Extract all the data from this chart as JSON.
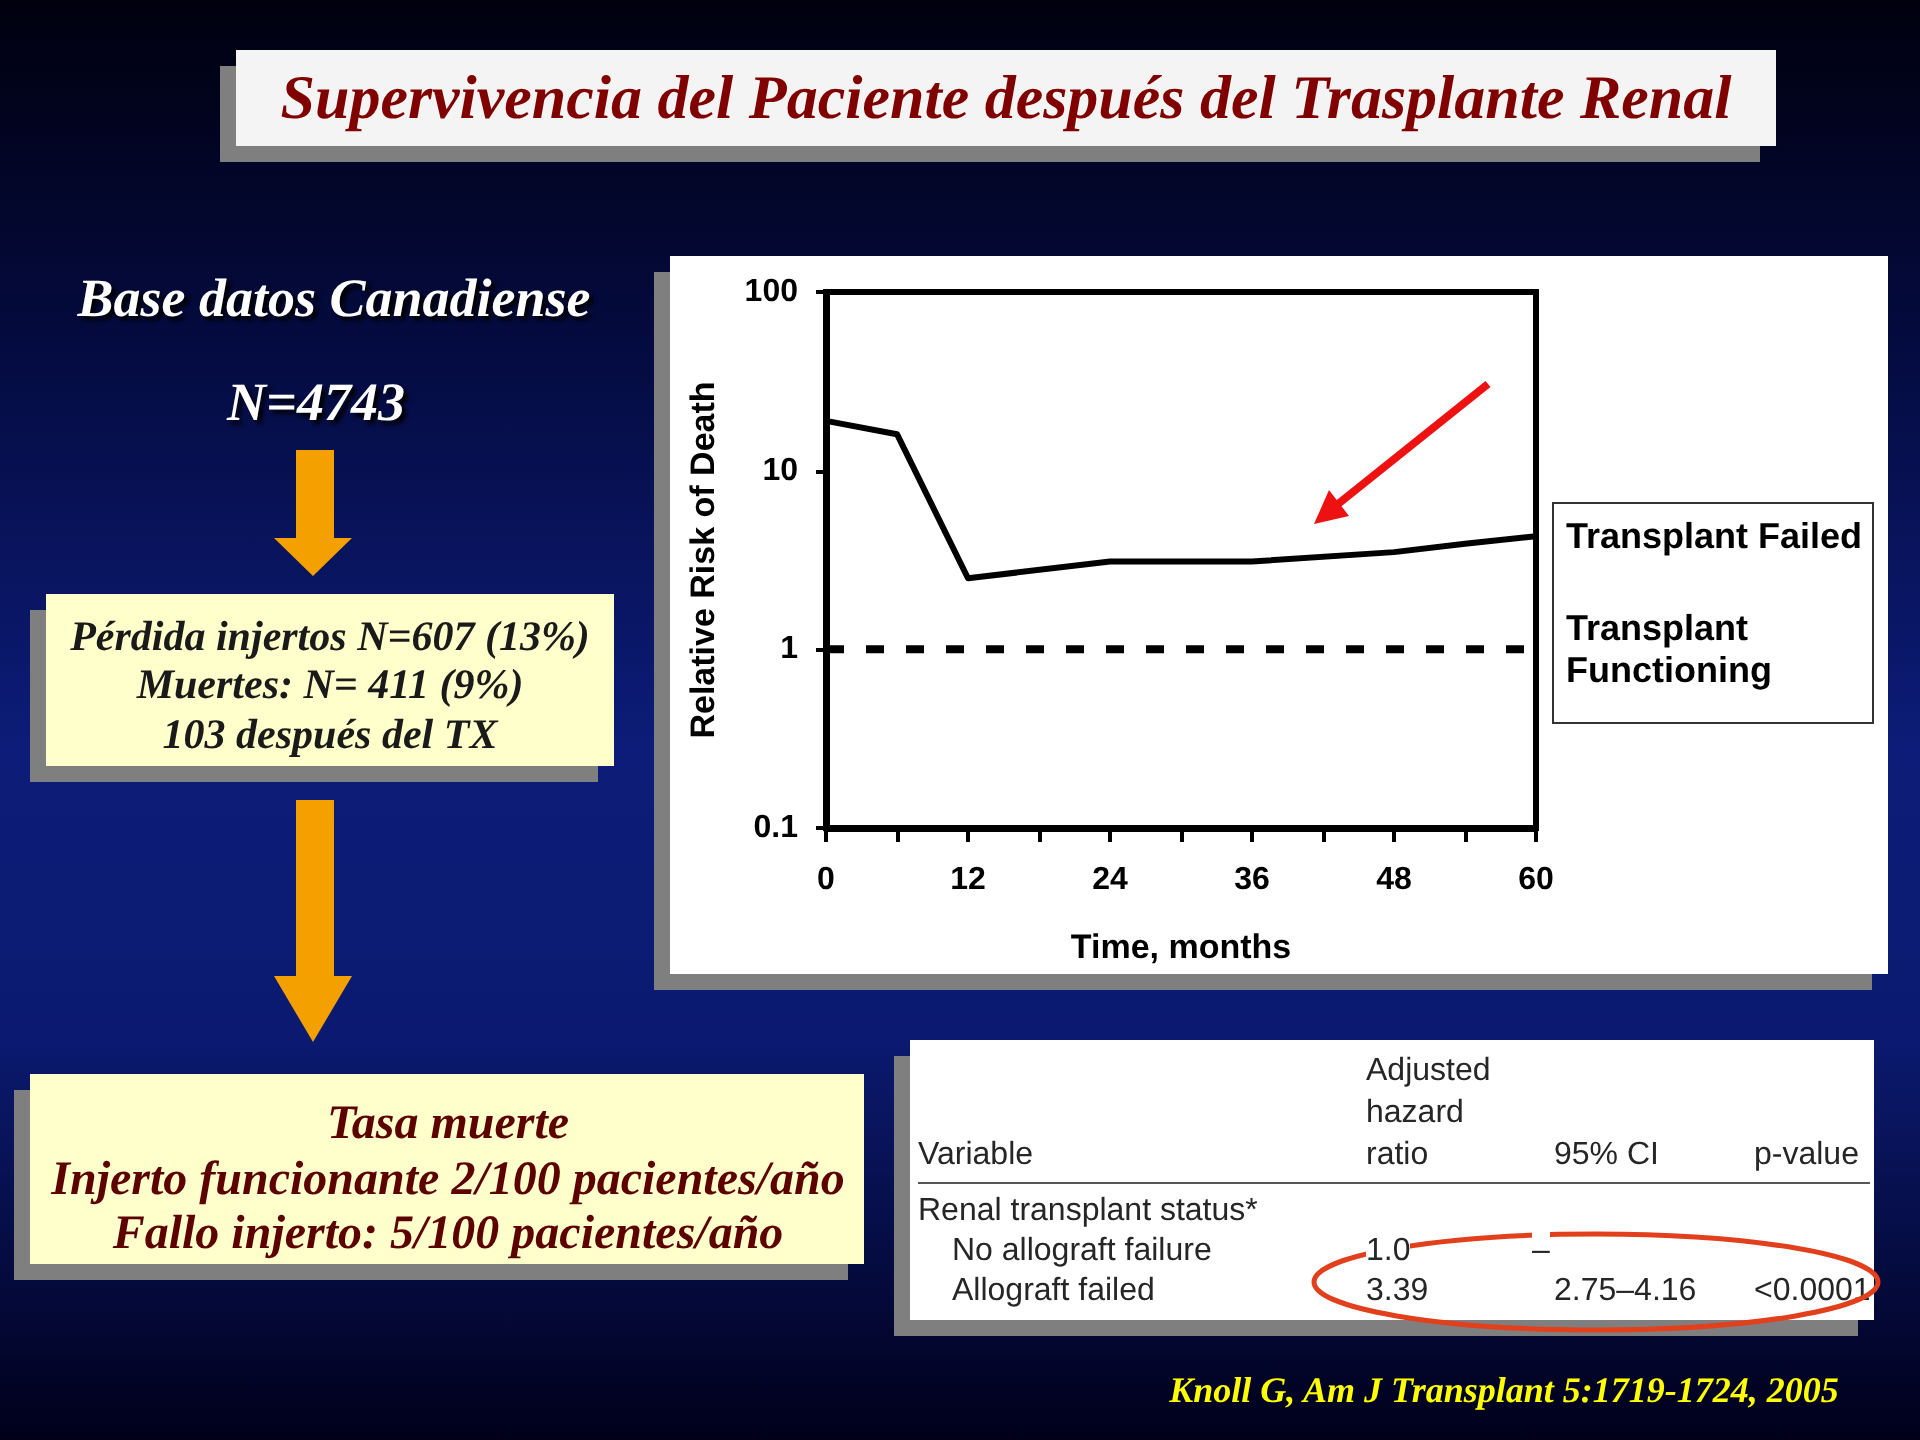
{
  "chart_data": {
    "type": "line",
    "title": "Supervivencia del Paciente después del Trasplante Renal",
    "xlabel": "Time, months",
    "ylabel": "Relative Risk of Death",
    "series": [
      {
        "name": "Transplant Failed",
        "color": "#000000",
        "x": [
          0,
          6,
          12,
          24,
          36,
          48,
          54,
          60
        ],
        "values": [
          19,
          16,
          2.5,
          3.1,
          3.1,
          3.5,
          3.9,
          4.3
        ]
      },
      {
        "name": "Transplant Functioning",
        "color": "#000000",
        "x": [
          0,
          60
        ],
        "values": [
          1,
          1
        ],
        "line_style": "dashed"
      }
    ],
    "xlim": [
      0,
      60
    ],
    "xticks": [
      0,
      {
        "value": 6,
        "label": null
      },
      12,
      {
        "value": 18,
        "label": null
      },
      24,
      {
        "value": 30,
        "label": null
      },
      36,
      {
        "value": 42,
        "label": null
      },
      48,
      {
        "value": 54,
        "label": null
      },
      60
    ],
    "ylim": [
      0.1,
      100
    ],
    "yticks": [
      0.1,
      1,
      10,
      100
    ],
    "log": "y",
    "marker": "none",
    "line_style": "solid",
    "annotations": [
      "Base datos Canadiense",
      "N=4743",
      "Pérdida injertos N=607 (13%)",
      "Muertes: N= 411 (9%)",
      "103 después del TX",
      "Tasa muerte",
      "Injerto funcionante 2/100 pacientes/año",
      "Fallo injerto: 5/100 pacientes/año",
      "Variable",
      "Adjusted hazard ratio",
      "95% CI",
      "p-value",
      "Renal transplant status*",
      "No allograft failure",
      "1.0",
      "–",
      "Allograft failed",
      "3.39",
      "2.75–4.16",
      "<0.0001",
      "Knoll G, Am J Transplant 5:1719-1724, 2005"
    ]
  }
}
